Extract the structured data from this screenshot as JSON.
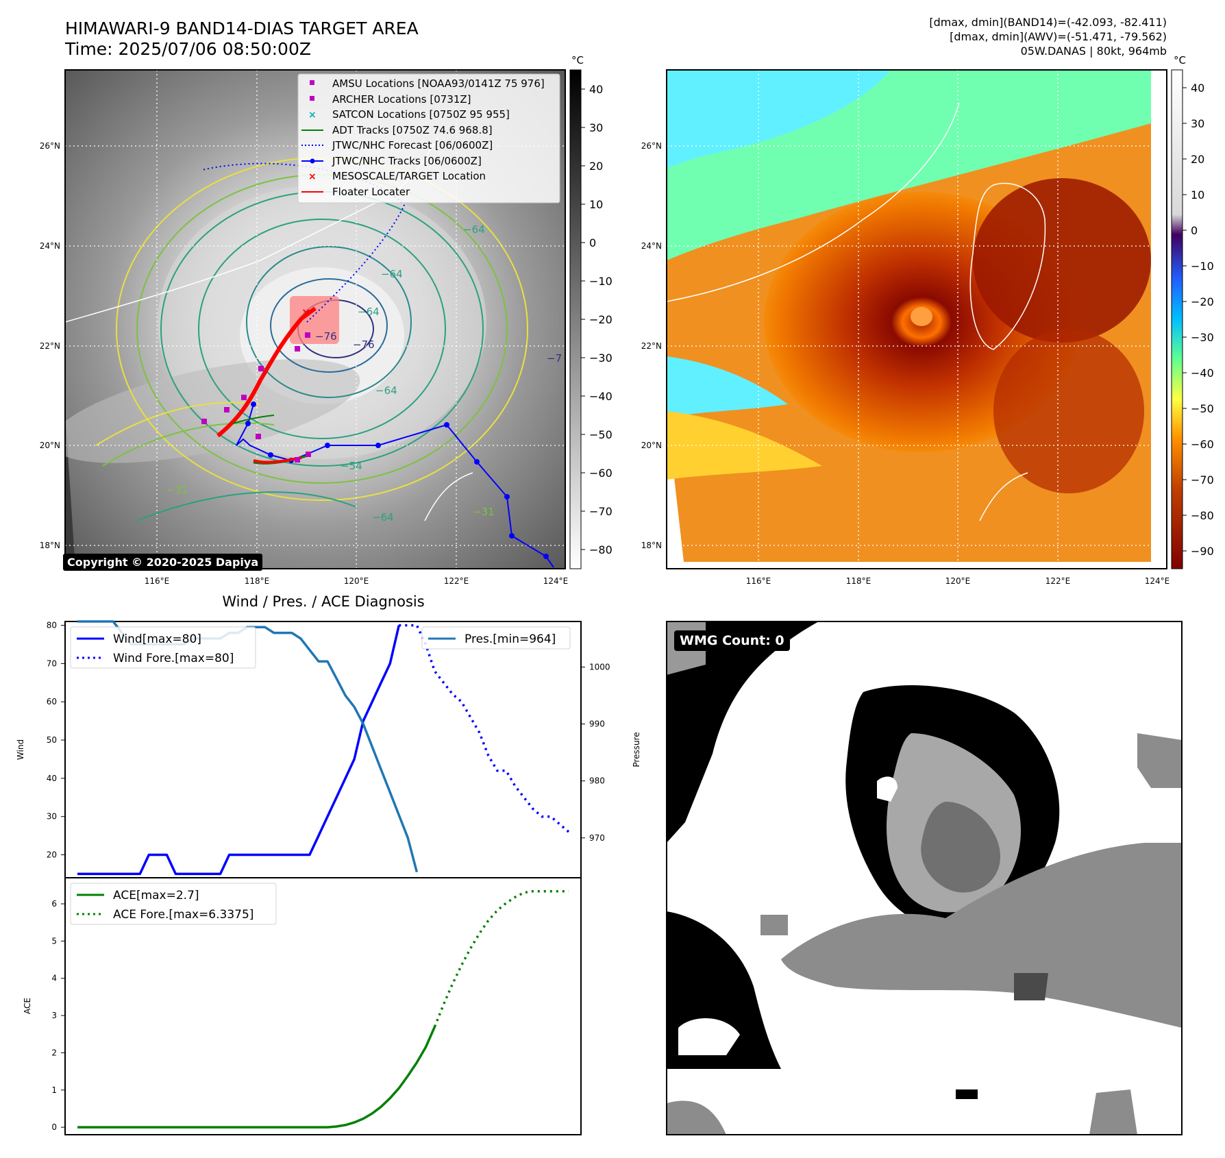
{
  "header": {
    "title_line1": "HIMAWARI-9 BAND14-DIAS TARGET AREA",
    "title_line2": "Time: 2025/07/06 08:50:00Z",
    "info_line1": "[dmax, dmin](BAND14)=(-42.093, -82.411)",
    "info_line2": "[dmax, dmin](AWV)=(-51.471, -79.562)",
    "info_line3": "05W.DANAS | 80kt, 964mb"
  },
  "copyright": "Copyright © 2020-2025 Dapiya",
  "maps": {
    "lon_ticks": [
      "116°E",
      "118°E",
      "120°E",
      "122°E",
      "124°E"
    ],
    "lat_ticks": [
      "26°N",
      "24°N",
      "22°N",
      "20°N",
      "18°N"
    ],
    "cbar_unit": "°C",
    "cbar1_ticks": [
      "40",
      "30",
      "20",
      "10",
      "0",
      "−10",
      "−20",
      "−30",
      "−40",
      "−50",
      "−60",
      "−70",
      "−80"
    ],
    "cbar2_ticks": [
      "40",
      "30",
      "20",
      "10",
      "0",
      "−10",
      "−20",
      "−30",
      "−40",
      "−50",
      "−60",
      "−70",
      "−80",
      "−90"
    ],
    "contour_labels": [
      "−64",
      "−64",
      "−76",
      "−76",
      "−64",
      "−64",
      "−31",
      "−31",
      "−54",
      "−64",
      "−7"
    ],
    "legend": [
      {
        "label": "AMSU Locations [NOAA93/0141Z 75 976]",
        "marker": "square",
        "color": "#c000c0"
      },
      {
        "label": "ARCHER Locations [0731Z]",
        "marker": "square",
        "color": "#c000c0"
      },
      {
        "label": "SATCON Locations [0750Z 95 955]",
        "marker": "x",
        "color": "#00b0b0"
      },
      {
        "label": "ADT Tracks [0750Z 74.6 968.8]",
        "marker": "line",
        "color": "#008000"
      },
      {
        "label": "JTWC/NHC Forecast [06/0600Z]",
        "marker": "dotted",
        "color": "#0000ff"
      },
      {
        "label": "JTWC/NHC Tracks [06/0600Z]",
        "marker": "line-dot",
        "color": "#0000ff"
      },
      {
        "label": "MESOSCALE/TARGET Location",
        "marker": "x",
        "color": "#ff0000"
      },
      {
        "label": "Floater Locater",
        "marker": "line",
        "color": "#ff0000"
      }
    ]
  },
  "chart_data": [
    {
      "type": "line",
      "title": "Wind / Pres. / ACE Diagnosis",
      "ylabel": "Wind",
      "y2label": "Pressure",
      "ylim": [
        14,
        81
      ],
      "y2lim": [
        963,
        1008
      ],
      "yticks": [
        20,
        30,
        40,
        50,
        60,
        70,
        80
      ],
      "y2ticks": [
        970,
        980,
        990,
        1000
      ],
      "x": [
        0,
        1,
        2,
        3,
        4,
        5,
        6,
        7,
        8,
        9,
        10,
        11,
        12,
        13,
        14,
        15,
        16,
        17,
        18,
        19,
        20,
        21,
        22,
        23,
        24,
        25,
        26,
        27,
        28,
        29,
        30,
        31,
        32,
        33,
        34,
        35,
        36,
        37,
        38,
        39,
        40,
        41,
        42,
        43,
        44,
        45,
        46,
        47,
        48,
        49,
        50,
        51,
        52,
        53,
        54,
        55
      ],
      "series": [
        {
          "name": "Wind[max=80]",
          "style": "solid",
          "color": "#0000ff",
          "values": [
            15,
            15,
            15,
            15,
            15,
            15,
            15,
            15,
            20,
            20,
            20,
            15,
            15,
            15,
            15,
            15,
            15,
            20,
            20,
            20,
            20,
            20,
            20,
            20,
            20,
            20,
            20,
            25,
            30,
            35,
            40,
            45,
            55,
            60,
            65,
            70,
            80,
            null,
            null,
            null,
            null,
            null,
            null,
            null,
            null,
            null,
            null,
            null,
            null,
            null,
            null,
            null,
            null,
            null,
            null,
            null
          ]
        },
        {
          "name": "Wind Fore.[max=80]",
          "style": "dotted",
          "color": "#0000ff",
          "values": [
            null,
            null,
            null,
            null,
            null,
            null,
            null,
            null,
            null,
            null,
            null,
            null,
            null,
            null,
            null,
            null,
            null,
            null,
            null,
            null,
            null,
            null,
            null,
            null,
            null,
            null,
            null,
            null,
            null,
            null,
            null,
            null,
            null,
            null,
            null,
            null,
            80,
            80,
            80,
            75,
            68,
            65,
            62,
            60,
            56,
            52,
            46,
            42,
            42,
            38,
            35,
            32,
            30,
            30,
            28,
            26
          ]
        },
        {
          "name": "Pres.[min=964]",
          "style": "solid",
          "color": "#1f77b4",
          "axis": "y2",
          "values": [
            1008,
            1008,
            1008,
            1008,
            1008,
            1006,
            1004,
            1004,
            1004,
            1004,
            1004,
            1004,
            1004,
            1005,
            1005,
            1005,
            1005,
            1006,
            1006,
            1007,
            1007,
            1007,
            1006,
            1006,
            1006,
            1005,
            1003,
            1001,
            1001,
            998,
            995,
            993,
            990,
            986,
            982,
            978,
            974,
            970,
            964,
            null,
            null,
            null,
            null,
            null,
            null,
            null,
            null,
            null,
            null,
            null,
            null,
            null,
            null,
            null,
            null,
            null
          ]
        }
      ]
    },
    {
      "type": "line",
      "ylabel": "ACE",
      "ylim": [
        -0.2,
        6.7
      ],
      "yticks": [
        0,
        1,
        2,
        3,
        4,
        5,
        6
      ],
      "x": [
        0,
        1,
        2,
        3,
        4,
        5,
        6,
        7,
        8,
        9,
        10,
        11,
        12,
        13,
        14,
        15,
        16,
        17,
        18,
        19,
        20,
        21,
        22,
        23,
        24,
        25,
        26,
        27,
        28,
        29,
        30,
        31,
        32,
        33,
        34,
        35,
        36,
        37,
        38,
        39,
        40,
        41,
        42,
        43,
        44,
        45,
        46,
        47,
        48,
        49,
        50,
        51,
        52,
        53,
        54,
        55
      ],
      "series": [
        {
          "name": "ACE[max=2.7]",
          "style": "solid",
          "color": "#008000",
          "values": [
            0,
            0,
            0,
            0,
            0,
            0,
            0,
            0,
            0,
            0,
            0,
            0,
            0,
            0,
            0,
            0,
            0,
            0,
            0,
            0,
            0,
            0,
            0,
            0,
            0,
            0,
            0,
            0,
            0,
            0.02,
            0.06,
            0.13,
            0.23,
            0.37,
            0.55,
            0.78,
            1.05,
            1.38,
            1.74,
            2.15,
            2.7,
            null,
            null,
            null,
            null,
            null,
            null,
            null,
            null,
            null,
            null,
            null,
            null,
            null,
            null,
            null
          ]
        },
        {
          "name": "ACE Fore.[max=6.3375]",
          "style": "dotted",
          "color": "#008000",
          "values": [
            null,
            null,
            null,
            null,
            null,
            null,
            null,
            null,
            null,
            null,
            null,
            null,
            null,
            null,
            null,
            null,
            null,
            null,
            null,
            null,
            null,
            null,
            null,
            null,
            null,
            null,
            null,
            null,
            null,
            null,
            null,
            null,
            null,
            null,
            null,
            null,
            null,
            null,
            null,
            null,
            2.7,
            3.3,
            3.85,
            4.35,
            4.8,
            5.2,
            5.55,
            5.82,
            6.02,
            6.18,
            6.3,
            6.3375,
            6.3375,
            6.3375,
            6.3375,
            6.3375
          ]
        }
      ]
    }
  ],
  "wmg": {
    "label": "WMG Count: 0"
  }
}
